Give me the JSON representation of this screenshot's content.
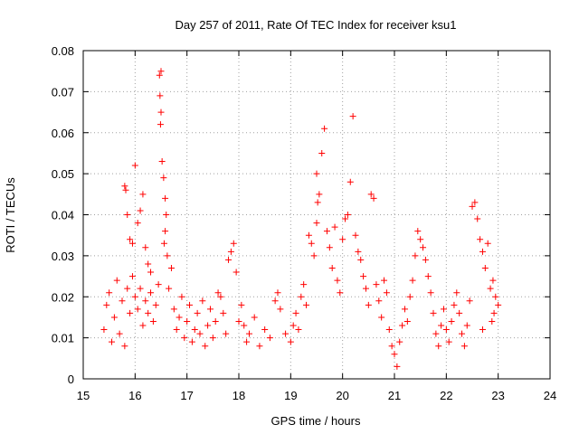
{
  "chart_data": {
    "type": "scatter",
    "title": "Day 257 of 2011, Rate Of TEC Index for receiver ksu1",
    "xlabel": "GPS time / hours",
    "ylabel": "ROTI / TECUs",
    "xlim": [
      15,
      24
    ],
    "ylim": [
      0,
      0.08
    ],
    "x_ticks": [
      "15",
      "16",
      "17",
      "18",
      "19",
      "20",
      "21",
      "22",
      "23",
      "24"
    ],
    "y_ticks": [
      "0",
      "0.01",
      "0.02",
      "0.03",
      "0.04",
      "0.05",
      "0.06",
      "0.07",
      "0.08"
    ],
    "grid": true,
    "marker": "plus",
    "color": "#ff0000",
    "series": [
      {
        "points": [
          [
            15.4,
            0.012
          ],
          [
            15.45,
            0.018
          ],
          [
            15.5,
            0.021
          ],
          [
            15.55,
            0.009
          ],
          [
            15.6,
            0.015
          ],
          [
            15.65,
            0.024
          ],
          [
            15.7,
            0.011
          ],
          [
            15.75,
            0.019
          ],
          [
            15.8,
            0.008
          ],
          [
            15.85,
            0.022
          ],
          [
            15.9,
            0.016
          ],
          [
            15.95,
            0.025
          ],
          [
            15.8,
            0.047
          ],
          [
            15.82,
            0.046
          ],
          [
            15.85,
            0.04
          ],
          [
            15.9,
            0.034
          ],
          [
            15.95,
            0.033
          ],
          [
            16.0,
            0.052
          ],
          [
            16.05,
            0.038
          ],
          [
            16.1,
            0.041
          ],
          [
            16.15,
            0.045
          ],
          [
            16.2,
            0.032
          ],
          [
            16.25,
            0.028
          ],
          [
            16.3,
            0.026
          ],
          [
            16.0,
            0.02
          ],
          [
            16.05,
            0.017
          ],
          [
            16.1,
            0.022
          ],
          [
            16.15,
            0.013
          ],
          [
            16.2,
            0.019
          ],
          [
            16.25,
            0.016
          ],
          [
            16.3,
            0.021
          ],
          [
            16.35,
            0.014
          ],
          [
            16.4,
            0.018
          ],
          [
            16.45,
            0.023
          ],
          [
            16.47,
            0.074
          ],
          [
            16.5,
            0.075
          ],
          [
            16.48,
            0.069
          ],
          [
            16.5,
            0.065
          ],
          [
            16.49,
            0.062
          ],
          [
            16.52,
            0.053
          ],
          [
            16.55,
            0.049
          ],
          [
            16.58,
            0.044
          ],
          [
            16.6,
            0.04
          ],
          [
            16.58,
            0.036
          ],
          [
            16.56,
            0.033
          ],
          [
            16.62,
            0.03
          ],
          [
            16.65,
            0.022
          ],
          [
            16.7,
            0.027
          ],
          [
            16.75,
            0.017
          ],
          [
            16.8,
            0.012
          ],
          [
            16.85,
            0.015
          ],
          [
            16.9,
            0.02
          ],
          [
            16.95,
            0.01
          ],
          [
            17.0,
            0.014
          ],
          [
            17.05,
            0.018
          ],
          [
            17.1,
            0.009
          ],
          [
            17.15,
            0.012
          ],
          [
            17.2,
            0.016
          ],
          [
            17.25,
            0.011
          ],
          [
            17.3,
            0.019
          ],
          [
            17.35,
            0.008
          ],
          [
            17.4,
            0.013
          ],
          [
            17.45,
            0.017
          ],
          [
            17.5,
            0.01
          ],
          [
            17.55,
            0.014
          ],
          [
            17.6,
            0.021
          ],
          [
            17.65,
            0.02
          ],
          [
            17.7,
            0.016
          ],
          [
            17.75,
            0.011
          ],
          [
            17.8,
            0.029
          ],
          [
            17.85,
            0.031
          ],
          [
            17.9,
            0.033
          ],
          [
            17.95,
            0.026
          ],
          [
            18.0,
            0.014
          ],
          [
            18.05,
            0.018
          ],
          [
            18.1,
            0.013
          ],
          [
            18.15,
            0.009
          ],
          [
            18.2,
            0.011
          ],
          [
            18.3,
            0.015
          ],
          [
            18.4,
            0.008
          ],
          [
            18.5,
            0.012
          ],
          [
            18.6,
            0.01
          ],
          [
            18.7,
            0.019
          ],
          [
            18.75,
            0.021
          ],
          [
            18.8,
            0.017
          ],
          [
            18.9,
            0.011
          ],
          [
            19.0,
            0.009
          ],
          [
            19.05,
            0.013
          ],
          [
            19.1,
            0.016
          ],
          [
            19.15,
            0.012
          ],
          [
            19.2,
            0.02
          ],
          [
            19.25,
            0.023
          ],
          [
            19.3,
            0.018
          ],
          [
            19.35,
            0.035
          ],
          [
            19.4,
            0.033
          ],
          [
            19.45,
            0.03
          ],
          [
            19.5,
            0.038
          ],
          [
            19.52,
            0.043
          ],
          [
            19.55,
            0.045
          ],
          [
            19.5,
            0.05
          ],
          [
            19.6,
            0.055
          ],
          [
            19.65,
            0.061
          ],
          [
            19.7,
            0.036
          ],
          [
            19.75,
            0.032
          ],
          [
            19.8,
            0.027
          ],
          [
            19.85,
            0.037
          ],
          [
            19.9,
            0.024
          ],
          [
            19.95,
            0.021
          ],
          [
            20.0,
            0.034
          ],
          [
            20.05,
            0.039
          ],
          [
            20.1,
            0.04
          ],
          [
            20.15,
            0.048
          ],
          [
            20.2,
            0.064
          ],
          [
            20.25,
            0.035
          ],
          [
            20.3,
            0.031
          ],
          [
            20.35,
            0.029
          ],
          [
            20.4,
            0.025
          ],
          [
            20.45,
            0.022
          ],
          [
            20.5,
            0.018
          ],
          [
            20.55,
            0.045
          ],
          [
            20.6,
            0.044
          ],
          [
            20.65,
            0.023
          ],
          [
            20.7,
            0.019
          ],
          [
            20.75,
            0.015
          ],
          [
            20.8,
            0.024
          ],
          [
            20.85,
            0.021
          ],
          [
            20.9,
            0.012
          ],
          [
            20.95,
            0.008
          ],
          [
            21.0,
            0.006
          ],
          [
            21.05,
            0.003
          ],
          [
            21.1,
            0.009
          ],
          [
            21.15,
            0.013
          ],
          [
            21.2,
            0.017
          ],
          [
            21.25,
            0.014
          ],
          [
            21.3,
            0.02
          ],
          [
            21.35,
            0.024
          ],
          [
            21.4,
            0.03
          ],
          [
            21.45,
            0.036
          ],
          [
            21.5,
            0.034
          ],
          [
            21.55,
            0.032
          ],
          [
            21.6,
            0.029
          ],
          [
            21.65,
            0.025
          ],
          [
            21.7,
            0.021
          ],
          [
            21.75,
            0.016
          ],
          [
            21.8,
            0.011
          ],
          [
            21.85,
            0.008
          ],
          [
            21.9,
            0.013
          ],
          [
            21.95,
            0.017
          ],
          [
            22.0,
            0.012
          ],
          [
            22.05,
            0.009
          ],
          [
            22.1,
            0.014
          ],
          [
            22.15,
            0.018
          ],
          [
            22.2,
            0.021
          ],
          [
            22.25,
            0.016
          ],
          [
            22.3,
            0.011
          ],
          [
            22.35,
            0.008
          ],
          [
            22.4,
            0.013
          ],
          [
            22.45,
            0.019
          ],
          [
            22.5,
            0.042
          ],
          [
            22.55,
            0.043
          ],
          [
            22.6,
            0.039
          ],
          [
            22.65,
            0.034
          ],
          [
            22.7,
            0.031
          ],
          [
            22.75,
            0.027
          ],
          [
            22.8,
            0.033
          ],
          [
            22.85,
            0.022
          ],
          [
            22.9,
            0.024
          ],
          [
            22.95,
            0.02
          ],
          [
            23.0,
            0.018
          ],
          [
            22.92,
            0.016
          ],
          [
            22.88,
            0.014
          ],
          [
            22.7,
            0.012
          ]
        ]
      }
    ]
  }
}
